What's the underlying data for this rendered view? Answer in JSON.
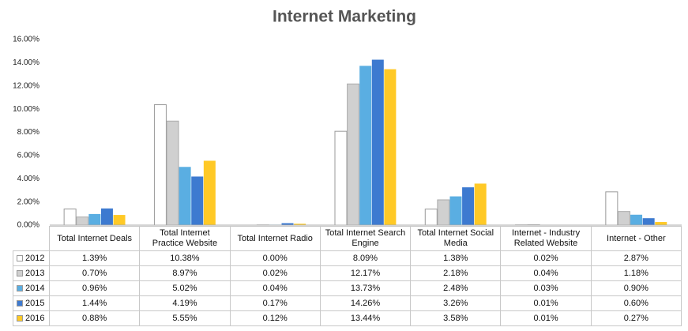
{
  "chart_data": {
    "type": "bar",
    "title": "Internet Marketing",
    "categories": [
      "Total Internet Deals",
      "Total Internet Practice Website",
      "Total Internet Radio",
      "Total Internet Search Engine",
      "Total Internet Social Media",
      "Internet - Industry Related Website",
      "Internet - Other"
    ],
    "series": [
      {
        "name": "2012",
        "color": "#ffffff",
        "values": [
          1.39,
          10.38,
          0.0,
          8.09,
          1.38,
          0.02,
          2.87
        ],
        "value_labels": [
          "1.39%",
          "10.38%",
          "0.00%",
          "8.09%",
          "1.38%",
          "0.02%",
          "2.87%"
        ]
      },
      {
        "name": "2013",
        "color": "#d0d0d0",
        "values": [
          0.7,
          8.97,
          0.02,
          12.17,
          2.18,
          0.04,
          1.18
        ],
        "value_labels": [
          "0.70%",
          "8.97%",
          "0.02%",
          "12.17%",
          "2.18%",
          "0.04%",
          "1.18%"
        ]
      },
      {
        "name": "2014",
        "color": "#5aaee2",
        "values": [
          0.96,
          5.02,
          0.04,
          13.73,
          2.48,
          0.03,
          0.9
        ],
        "value_labels": [
          "0.96%",
          "5.02%",
          "0.04%",
          "13.73%",
          "2.48%",
          "0.03%",
          "0.90%"
        ]
      },
      {
        "name": "2015",
        "color": "#3d7ad0",
        "values": [
          1.44,
          4.19,
          0.17,
          14.26,
          3.26,
          0.01,
          0.6
        ],
        "value_labels": [
          "1.44%",
          "4.19%",
          "0.17%",
          "14.26%",
          "3.26%",
          "0.01%",
          "0.60%"
        ]
      },
      {
        "name": "2016",
        "color": "#ffc926",
        "values": [
          0.88,
          5.55,
          0.12,
          13.44,
          3.58,
          0.01,
          0.27
        ],
        "value_labels": [
          "0.88%",
          "5.55%",
          "0.12%",
          "13.44%",
          "3.58%",
          "0.01%",
          "0.27%"
        ]
      }
    ],
    "ylim": [
      0,
      16
    ],
    "yticks": [
      {
        "value": 0,
        "label": "0.00%"
      },
      {
        "value": 2,
        "label": "2.00%"
      },
      {
        "value": 4,
        "label": "4.00%"
      },
      {
        "value": 6,
        "label": "6.00%"
      },
      {
        "value": 8,
        "label": "8.00%"
      },
      {
        "value": 10,
        "label": "10.00%"
      },
      {
        "value": 12,
        "label": "12.00%"
      },
      {
        "value": 14,
        "label": "14.00%"
      },
      {
        "value": 16,
        "label": "16.00%"
      }
    ],
    "grid": false
  }
}
